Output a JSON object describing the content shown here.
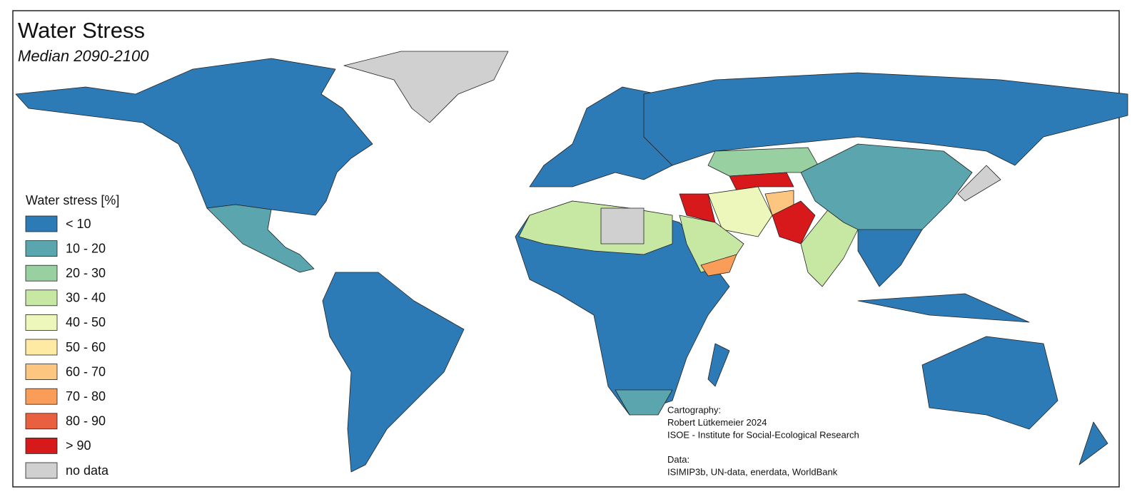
{
  "title": "Water Stress",
  "subtitle": "Median 2090-2100",
  "legend": {
    "title": "Water stress [%]",
    "items": [
      {
        "label": "< 10",
        "color": "#2c7bb6"
      },
      {
        "label": "10 - 20",
        "color": "#5ba5ae"
      },
      {
        "label": "20 - 30",
        "color": "#98d0a2"
      },
      {
        "label": "30 - 40",
        "color": "#c7e8a3"
      },
      {
        "label": "40 - 50",
        "color": "#edf7bb"
      },
      {
        "label": "50 - 60",
        "color": "#feeaa2"
      },
      {
        "label": "60 - 70",
        "color": "#fdc680"
      },
      {
        "label": "70 - 80",
        "color": "#f99d59"
      },
      {
        "label": "80 - 90",
        "color": "#e8603f"
      },
      {
        "label": "> 90",
        "color": "#d7191c"
      },
      {
        "label": "no data",
        "color": "#d0d0d0"
      }
    ]
  },
  "credits": {
    "cartography": [
      "Cartography:",
      "Robert Lütkemeier 2024",
      "ISOE - Institute for Social-Ecological Research"
    ],
    "data": [
      "Data:",
      "ISIMIP3b, UN-data, enerdata, WorldBank"
    ]
  }
}
